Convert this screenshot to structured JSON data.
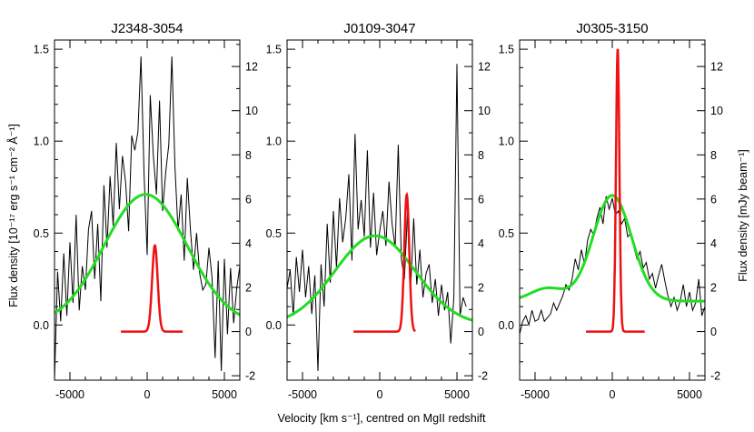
{
  "ylabel_left": "Flux density [10⁻¹⁷ erg s⁻¹ cm⁻² Å⁻¹]",
  "ylabel_right": "Flux density [mJy beam⁻¹]",
  "xlabel": "Velocity [km s⁻¹], centred on MgII redshift",
  "colors": {
    "spectrum": "#000000",
    "mgii_fit": "#22dd22",
    "cii_line": "#ee1111"
  },
  "chart_data": [
    {
      "type": "line",
      "title": "J2348-3054",
      "xlim": [
        -6000,
        6000
      ],
      "ylim": [
        -0.3,
        1.55
      ],
      "ylim_right": [
        -2.2,
        13.2
      ],
      "xticks": [
        -5000,
        0,
        5000
      ],
      "yticks": [
        0.0,
        0.5,
        1.0,
        1.5
      ],
      "yticks_right": [
        -2,
        0,
        2,
        4,
        6,
        8,
        10,
        12
      ],
      "show_left_tick_labels": true,
      "show_right_tick_labels": true,
      "series": [
        {
          "role": "spectrum",
          "x": [
            -6000,
            -5800,
            -5600,
            -5400,
            -5200,
            -5000,
            -4800,
            -4600,
            -4400,
            -4200,
            -4000,
            -3800,
            -3600,
            -3400,
            -3200,
            -3000,
            -2800,
            -2600,
            -2400,
            -2200,
            -2000,
            -1800,
            -1600,
            -1400,
            -1200,
            -1000,
            -800,
            -600,
            -400,
            -200,
            0,
            200,
            400,
            600,
            800,
            1000,
            1200,
            1400,
            1600,
            1800,
            2000,
            2200,
            2400,
            2600,
            2800,
            3000,
            3200,
            3400,
            3600,
            3800,
            4000,
            4200,
            4400,
            4600,
            4800,
            5000,
            5200,
            5400,
            5600,
            5800,
            6000
          ],
          "y": [
            -0.3,
            0.29,
            0.02,
            0.39,
            0.05,
            0.45,
            0.12,
            0.6,
            0.08,
            0.32,
            0.19,
            0.52,
            0.62,
            0.25,
            0.55,
            0.13,
            0.76,
            0.42,
            0.81,
            0.54,
            0.99,
            0.63,
            0.92,
            0.78,
            0.51,
            1.03,
            0.95,
            1.05,
            1.46,
            0.82,
            0.38,
            1.25,
            0.92,
            0.71,
            1.22,
            0.62,
            0.83,
            0.98,
            1.46,
            0.86,
            0.51,
            0.71,
            0.35,
            0.8,
            0.52,
            0.3,
            0.5,
            0.28,
            0.19,
            0.22,
            0.42,
            0.26,
            -0.18,
            0.35,
            -0.25,
            0.36,
            -0.05,
            0.31,
            0.01,
            0.2,
            0.32
          ]
        },
        {
          "role": "mgii_fit",
          "gauss": {
            "amp": 0.71,
            "center": -100,
            "sigma": 2700,
            "offset": 0.0
          },
          "x_range": [
            -6000,
            6000
          ]
        },
        {
          "role": "cii_line",
          "axis": "right",
          "gauss": {
            "amp": 3.9,
            "center": 500,
            "sigma": 180,
            "offset": 0.0
          },
          "x_range": [
            -1700,
            2300
          ]
        }
      ]
    },
    {
      "type": "line",
      "title": "J0109-3047",
      "xlim": [
        -6000,
        6000
      ],
      "ylim": [
        -0.3,
        1.55
      ],
      "ylim_right": [
        -2.2,
        13.2
      ],
      "xticks": [
        -5000,
        0,
        5000
      ],
      "yticks": [
        0.0,
        0.5,
        1.0,
        1.5
      ],
      "yticks_right": [
        -2,
        0,
        2,
        4,
        6,
        8,
        10,
        12
      ],
      "show_left_tick_labels": true,
      "show_right_tick_labels": true,
      "series": [
        {
          "role": "spectrum",
          "x": [
            -6000,
            -5800,
            -5600,
            -5400,
            -5200,
            -5000,
            -4800,
            -4600,
            -4400,
            -4200,
            -4000,
            -3800,
            -3600,
            -3400,
            -3200,
            -3000,
            -2800,
            -2600,
            -2400,
            -2200,
            -2000,
            -1800,
            -1600,
            -1400,
            -1200,
            -1000,
            -800,
            -600,
            -400,
            -200,
            0,
            200,
            400,
            600,
            800,
            1000,
            1200,
            1400,
            1600,
            1800,
            2000,
            2200,
            2400,
            2600,
            2800,
            3000,
            3200,
            3400,
            3600,
            3800,
            4000,
            4200,
            4400,
            4600,
            4800,
            5000,
            5200,
            5400,
            5600
          ],
          "y": [
            0.2,
            0.3,
            0.05,
            0.37,
            0.18,
            0.41,
            0.15,
            0.32,
            0.06,
            0.27,
            -0.25,
            0.33,
            0.1,
            0.55,
            0.23,
            0.62,
            0.31,
            0.69,
            0.45,
            0.58,
            0.82,
            0.35,
            1.04,
            0.52,
            0.68,
            0.48,
            0.95,
            0.42,
            0.72,
            0.38,
            0.51,
            0.62,
            0.43,
            0.78,
            0.55,
            0.42,
            0.98,
            0.36,
            0.25,
            0.62,
            0.19,
            0.58,
            0.22,
            0.41,
            0.15,
            0.28,
            0.33,
            0.12,
            0.25,
            0.05,
            0.22,
            0.08,
            0.18,
            -0.1,
            0.15,
            1.42,
            0.05,
            0.15,
            0.1
          ]
        },
        {
          "role": "mgii_fit",
          "gauss": {
            "amp": 0.485,
            "center": -300,
            "sigma": 2600,
            "offset": 0.0
          },
          "x_range": [
            -6000,
            6000
          ]
        },
        {
          "role": "cii_line",
          "axis": "right",
          "gauss": {
            "amp": 6.2,
            "center": 1750,
            "sigma": 160,
            "offset": 0.0
          },
          "x_range": [
            -1700,
            2300
          ]
        }
      ]
    },
    {
      "type": "line",
      "title": "J0305-3150",
      "xlim": [
        -6000,
        6000
      ],
      "ylim": [
        -0.3,
        1.55
      ],
      "ylim_right": [
        -2.2,
        13.2
      ],
      "xticks": [
        -5000,
        0,
        5000
      ],
      "yticks": [
        0.0,
        0.5,
        1.0,
        1.5
      ],
      "yticks_right": [
        -2,
        0,
        2,
        4,
        6,
        8,
        10,
        12
      ],
      "show_left_tick_labels": true,
      "show_right_tick_labels": true,
      "series": [
        {
          "role": "spectrum",
          "x": [
            -6000,
            -5800,
            -5600,
            -5400,
            -5200,
            -5000,
            -4800,
            -4600,
            -4400,
            -4200,
            -4000,
            -3800,
            -3600,
            -3400,
            -3200,
            -3000,
            -2800,
            -2600,
            -2400,
            -2200,
            -2000,
            -1800,
            -1600,
            -1400,
            -1200,
            -1000,
            -800,
            -600,
            -400,
            -200,
            0,
            200,
            400,
            600,
            800,
            1000,
            1200,
            1400,
            1600,
            1800,
            2000,
            2200,
            2400,
            2600,
            2800,
            3000,
            3200,
            3400,
            3600,
            3800,
            4000,
            4200,
            4400,
            4600,
            4800,
            5000,
            5200,
            5400,
            5600,
            5800,
            6000
          ],
          "y": [
            -0.05,
            0.02,
            0.05,
            0.0,
            0.08,
            0.02,
            0.03,
            0.08,
            0.02,
            0.04,
            0.06,
            0.12,
            0.08,
            0.12,
            0.16,
            0.22,
            0.19,
            0.25,
            0.36,
            0.3,
            0.41,
            0.33,
            0.46,
            0.52,
            0.49,
            0.58,
            0.64,
            0.55,
            0.7,
            0.63,
            0.69,
            0.6,
            0.62,
            0.55,
            0.58,
            0.48,
            0.5,
            0.42,
            0.36,
            0.4,
            0.31,
            0.34,
            0.25,
            0.28,
            0.2,
            0.27,
            0.33,
            0.24,
            0.16,
            0.1,
            0.15,
            0.08,
            0.13,
            0.22,
            0.1,
            0.18,
            0.08,
            0.12,
            0.25,
            0.05,
            0.1
          ]
        },
        {
          "role": "mgii_fit",
          "gauss": {
            "amp": 0.575,
            "center": 0,
            "sigma": 1250,
            "offset": 0.13
          },
          "extra": {
            "amp": 0.07,
            "center": -4200,
            "sigma": 1100
          },
          "x_range": [
            -6000,
            6000
          ]
        },
        {
          "role": "cii_line",
          "axis": "right",
          "gauss": {
            "amp": 12.8,
            "center": 350,
            "sigma": 110,
            "offset": 0.0
          },
          "x_range": [
            -1700,
            2100
          ]
        }
      ]
    }
  ]
}
